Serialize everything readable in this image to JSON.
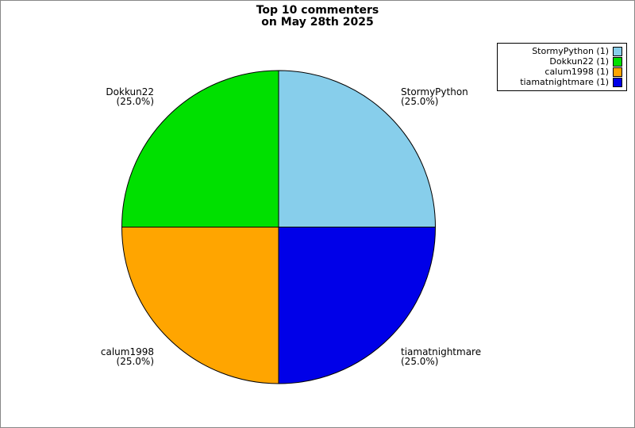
{
  "figure": {
    "title_line1": "Top 10 commenters",
    "title_line2": "on May 28th 2025",
    "background": "#ffffff",
    "border_color": "#888888"
  },
  "chart_data": {
    "type": "pie",
    "title": "Top 10 commenters on May 28th 2025",
    "start_angle_deg": 0,
    "direction": "counterclockwise",
    "edge_color": "#000000",
    "legend_position": "upper right",
    "total": 4,
    "slices": [
      {
        "label": "StormyPython",
        "value": 1,
        "pct": 25.0,
        "pct_label": "(25.0%)",
        "color": "#87CEEB",
        "legend_label": "StormyPython (1)"
      },
      {
        "label": "Dokkun22",
        "value": 1,
        "pct": 25.0,
        "pct_label": "(25.0%)",
        "color": "#00E000",
        "legend_label": "Dokkun22 (1)"
      },
      {
        "label": "calum1998",
        "value": 1,
        "pct": 25.0,
        "pct_label": "(25.0%)",
        "color": "#FFA500",
        "legend_label": "calum1998 (1)"
      },
      {
        "label": "tiamatnightmare",
        "value": 1,
        "pct": 25.0,
        "pct_label": "(25.0%)",
        "color": "#0000E8",
        "legend_label": "tiamatnightmare (1)"
      }
    ]
  }
}
